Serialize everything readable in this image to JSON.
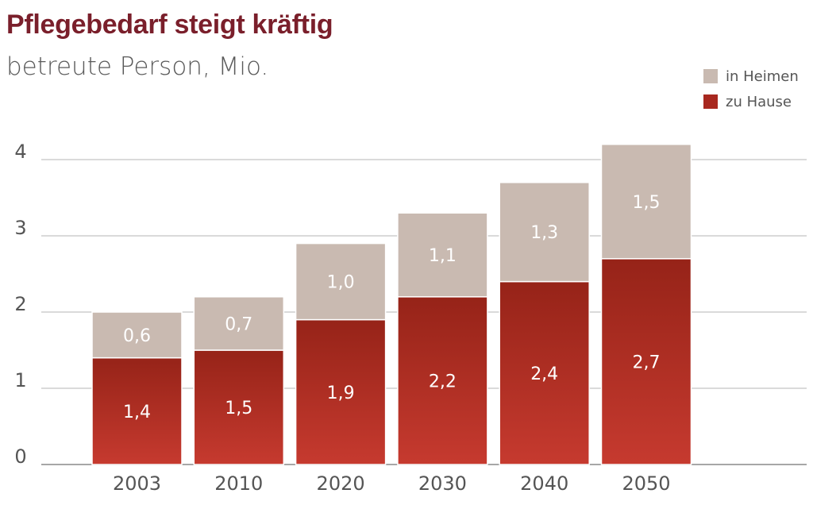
{
  "chart_data": {
    "type": "bar",
    "stacked": true,
    "title": "Pflegebedarf steigt kräftig",
    "subtitle": "betreute Person, Mio.",
    "categories": [
      "2003",
      "2010",
      "2020",
      "2030",
      "2040",
      "2050"
    ],
    "series": [
      {
        "name": "zu Hause",
        "values": [
          1.4,
          1.5,
          1.9,
          2.2,
          2.4,
          2.7
        ],
        "labels": [
          "1,4",
          "1,5",
          "1,9",
          "2,2",
          "2,4",
          "2,7"
        ],
        "color": "#a8281f"
      },
      {
        "name": "in Heimen",
        "values": [
          0.6,
          0.7,
          1.0,
          1.1,
          1.3,
          1.5
        ],
        "labels": [
          "0,6",
          "0,7",
          "1,0",
          "1,1",
          "1,3",
          "1,5"
        ],
        "color": "#c9bab1"
      }
    ],
    "legend_order": [
      "in Heimen",
      "zu Hause"
    ],
    "yticks": [
      "0",
      "1",
      "2",
      "3",
      "4"
    ],
    "ylim": [
      0,
      4
    ],
    "grid": true,
    "legend_position": "top-right"
  }
}
